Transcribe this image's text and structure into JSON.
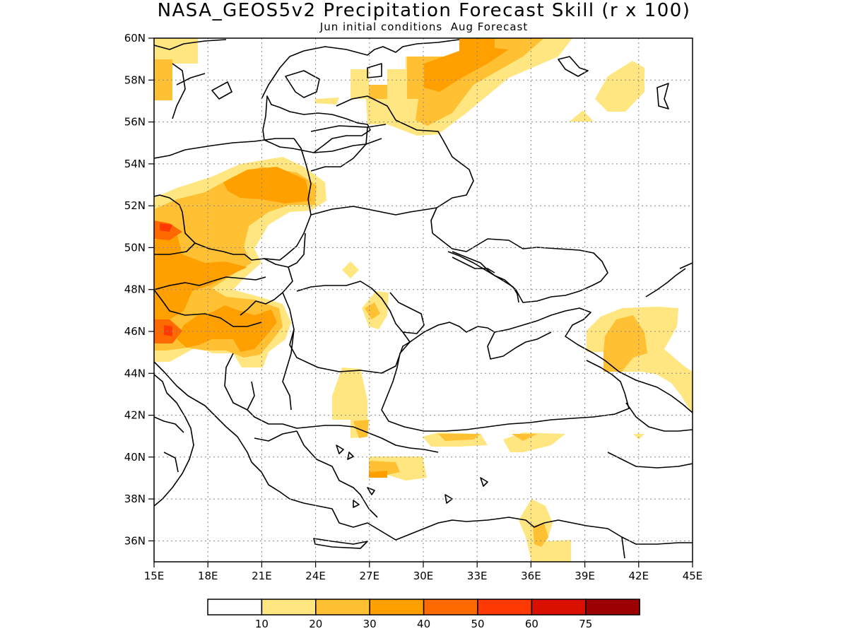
{
  "title": "NASA_GEOS5v2 Precipitation Forecast Skill (r x 100)",
  "subtitle": "Jun initial conditions  Aug Forecast",
  "colors": {
    "c10": "#ffe680",
    "c20": "#ffc133",
    "c30": "#ffa000",
    "c40": "#ff6a00",
    "c50": "#ff3a00",
    "c60": "#d90f00",
    "c75": "#9c0000"
  },
  "map": {
    "lon_range": [
      15,
      45
    ],
    "lat_range": [
      35,
      60
    ],
    "lon_ticks": [
      "15E",
      "18E",
      "21E",
      "24E",
      "27E",
      "30E",
      "33E",
      "36E",
      "39E",
      "42E",
      "45E"
    ],
    "lat_ticks": [
      "36N",
      "38N",
      "40N",
      "42N",
      "44N",
      "46N",
      "48N",
      "50N",
      "52N",
      "54N",
      "56N",
      "58N",
      "60N"
    ],
    "grid": "dotted"
  },
  "colorbar": {
    "labels": [
      "10",
      "20",
      "30",
      "40",
      "50",
      "60",
      "75"
    ],
    "colors": [
      "#ffffff",
      "#ffe680",
      "#ffc133",
      "#ffa000",
      "#ff6a00",
      "#ff3a00",
      "#d90f00",
      "#9c0000"
    ]
  }
}
